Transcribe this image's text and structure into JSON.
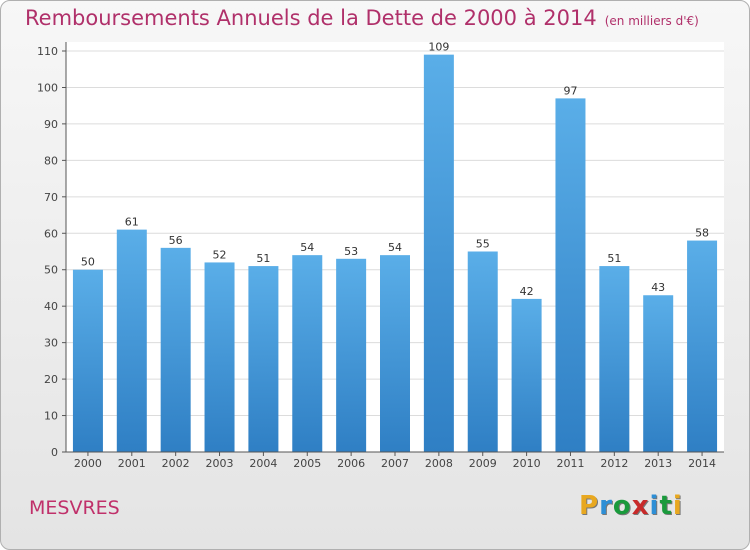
{
  "chart_data": {
    "type": "bar",
    "title": "Remboursements Annuels de la Dette de 2000 à 2014",
    "subtitle": "(en milliers d'€)",
    "categories": [
      "2000",
      "2001",
      "2002",
      "2003",
      "2004",
      "2005",
      "2006",
      "2007",
      "2008",
      "2009",
      "2010",
      "2011",
      "2012",
      "2013",
      "2014"
    ],
    "values": [
      50,
      61,
      56,
      52,
      51,
      54,
      53,
      54,
      109,
      55,
      42,
      97,
      51,
      43,
      58
    ],
    "ylim": [
      0,
      110
    ],
    "yticks": [
      0,
      10,
      20,
      30,
      40,
      50,
      60,
      70,
      80,
      90,
      100,
      110
    ],
    "grid": true,
    "bar_color": "#3f94d6"
  },
  "commune": "MESVRES",
  "logo": {
    "letters": [
      "P",
      "r",
      "o",
      "x",
      "i",
      "t",
      "i"
    ],
    "colors": [
      "#e8a820",
      "#2d8fd6",
      "#1a9a3c",
      "#c82a2a",
      "#2d8fd6",
      "#1a9a3c",
      "#e8a820"
    ]
  }
}
